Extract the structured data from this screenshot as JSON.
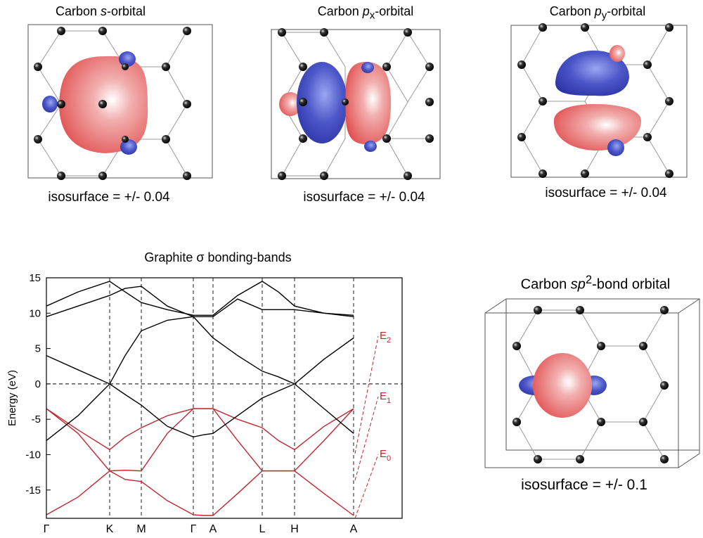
{
  "orbitals": [
    {
      "title": [
        {
          "text": "Carbon "
        },
        {
          "text": "s",
          "style": "italic"
        },
        {
          "text": "-orbital"
        }
      ],
      "isosurface": "isosurface = +/- 0.04"
    },
    {
      "title": [
        {
          "text": "Carbon "
        },
        {
          "text": "p",
          "style": "italic"
        },
        {
          "text": "x",
          "style": "sub"
        },
        {
          "text": "-orbital"
        }
      ],
      "isosurface": "isosurface = +/- 0.04"
    },
    {
      "title": [
        {
          "text": "Carbon "
        },
        {
          "text": "p",
          "style": "italic"
        },
        {
          "text": "y",
          "style": "sub"
        },
        {
          "text": "-orbital"
        }
      ],
      "isosurface": "isosurface = +/- 0.04"
    },
    {
      "title": [
        {
          "text": "Carbon "
        },
        {
          "text": "sp",
          "style": "italic"
        },
        {
          "text": "2",
          "style": "sup"
        },
        {
          "text": "-bond orbital"
        }
      ],
      "isosurface": "isosurface = +/- 0.1"
    }
  ],
  "chart_data": {
    "type": "line",
    "title": "Graphite σ bonding-bands",
    "y_label": "Energy (eV)",
    "x": [
      0,
      45,
      90,
      112,
      135,
      172,
      209,
      223,
      237,
      272,
      307,
      330,
      353,
      395,
      437
    ],
    "xlim": [
      0,
      506
    ],
    "ylim": [
      -19,
      15
    ],
    "xticks": [
      {
        "value": 0,
        "label": "Γ"
      },
      {
        "value": 90,
        "label": "K"
      },
      {
        "value": 135,
        "label": "M"
      },
      {
        "value": 209,
        "label": "Γ"
      },
      {
        "value": 237,
        "label": "A"
      },
      {
        "value": 307,
        "label": "L"
      },
      {
        "value": 353,
        "label": "H"
      },
      {
        "value": 437,
        "label": "A"
      }
    ],
    "yticks": [
      15,
      10,
      5,
      0,
      -5,
      -10,
      -15
    ],
    "grid": true,
    "hline": 0,
    "series": [
      {
        "color": "#c1272d",
        "values": [
          -3.5,
          -6.5,
          -9.3,
          -7.5,
          -6.2,
          -4.5,
          -3.5,
          -3.5,
          -3.5,
          -5,
          -6.2,
          -8,
          -9.3,
          -6,
          -3.5
        ]
      },
      {
        "color": "#c1272d",
        "values": [
          -3.5,
          -7,
          -12.3,
          -12.2,
          -12.3,
          -7,
          -3.5,
          -3.5,
          -3.5,
          -8,
          -12.3,
          -12.3,
          -12.3,
          -8,
          -3.5
        ]
      },
      {
        "color": "#c1272d",
        "values": [
          -18.5,
          -16,
          -12.3,
          -13.5,
          -13.8,
          -16.5,
          -18.5,
          -18.6,
          -18.6,
          -15.5,
          -12.3,
          -12.3,
          -12.3,
          -15.5,
          -18.6
        ]
      },
      {
        "color": "#000000",
        "values": [
          -8,
          -4.5,
          0,
          -1.5,
          -3,
          -6,
          -7.5,
          -7.2,
          -7,
          -4.5,
          -2,
          -1,
          0,
          -3.5,
          -7
        ]
      },
      {
        "color": "#000000",
        "values": [
          4,
          2,
          0,
          4,
          7.5,
          9,
          9.5,
          8,
          6.5,
          4,
          1.8,
          1,
          0,
          3.5,
          6.5
        ]
      },
      {
        "color": "#000000",
        "values": [
          11,
          13,
          14.5,
          13,
          11.5,
          10.5,
          9.7,
          9.7,
          9.7,
          12.5,
          14.5,
          13,
          11,
          10,
          9.7
        ]
      },
      {
        "color": "#000000",
        "values": [
          9.5,
          11,
          12.5,
          13.5,
          13.8,
          11,
          9.5,
          9.5,
          9.5,
          12,
          10.5,
          10.5,
          10.5,
          10,
          9.5
        ]
      }
    ],
    "annotations": [
      {
        "text": "E",
        "sub": "2"
      },
      {
        "text": "E",
        "sub": "1"
      },
      {
        "text": "E",
        "sub": "0"
      }
    ]
  }
}
